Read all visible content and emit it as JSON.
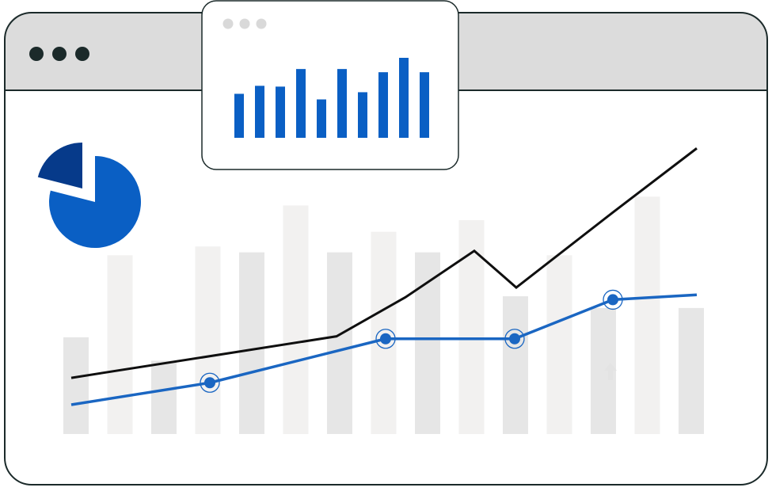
{
  "colors": {
    "outline": "#1b2a2a",
    "titlebar": "#dcdcdc",
    "window_bg": "#ffffff",
    "bar_light": "#f2f1f0",
    "bar_dark": "#e6e6e6",
    "line_primary": "#0f0f0f",
    "line_secondary": "#1a66c2",
    "pie_main": "#0a5fc4",
    "pie_slice": "#063a8a",
    "mini_bars": "#0a5fc4",
    "mini_dots": "#d9d9d9",
    "dots": "#1b2a2a"
  },
  "icons": {
    "window_controls": "three-dots-icon",
    "popup_controls": "three-dots-icon",
    "arrow": "arrow-up-icon"
  },
  "chart_data": [
    {
      "type": "bar",
      "values": [
        0.33,
        0.61,
        0.25,
        0.64,
        0.62,
        0.78,
        0.62,
        0.69,
        0.62,
        0.73,
        0.47,
        0.61,
        0.43,
        0.81,
        0.43
      ],
      "ylim": [
        0,
        1
      ],
      "grid": false
    },
    {
      "type": "line",
      "series": [
        {
          "values": [
            0.23,
            0.4,
            0.56,
            0.75,
            0.6,
            0.91,
            1.17
          ]
        },
        {
          "values": [
            0.12,
            0.21,
            0.39,
            0.39,
            0.55,
            0.57
          ],
          "markers": [
            1,
            2,
            3,
            4
          ]
        }
      ],
      "ylim": [
        0,
        1.2
      ]
    },
    {
      "type": "pie",
      "values": [
        79,
        21
      ]
    },
    {
      "type": "bar",
      "values": [
        0.55,
        0.65,
        0.64,
        0.86,
        0.48,
        0.86,
        0.57,
        0.82,
        1.0,
        0.82
      ],
      "ylim": [
        0,
        1
      ]
    }
  ]
}
